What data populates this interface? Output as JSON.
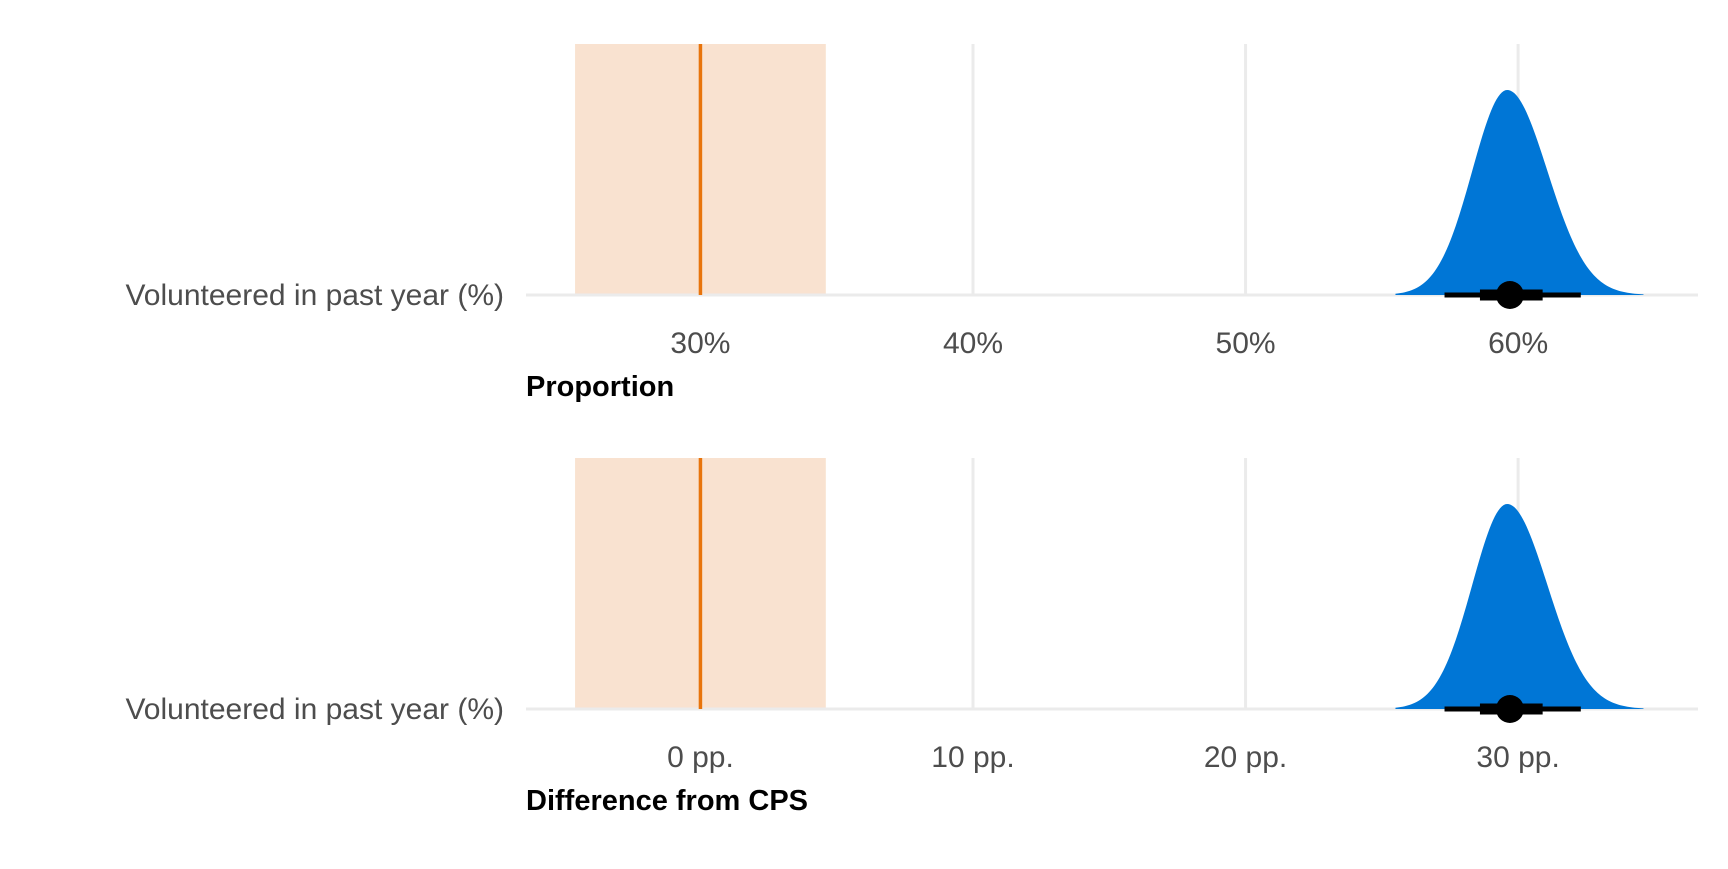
{
  "colors": {
    "density": "#0076D6",
    "reference_line": "#E8740C",
    "reference_band": "#F9E2D0",
    "grid": "#EBEBEB",
    "interval": "#000000"
  },
  "chart_data": [
    {
      "type": "density",
      "category": "Volunteered in past year (%)",
      "xlabel": "Proportion",
      "tick_values": [
        30,
        40,
        50,
        60
      ],
      "tick_labels": [
        "30%",
        "40%",
        "50%",
        "60%"
      ],
      "xlim": [
        23.6,
        66.6
      ],
      "reference": {
        "value": 30.0,
        "band": [
          25.4,
          34.6
        ]
      },
      "point_estimate": 59.7,
      "interval_inner": [
        58.6,
        60.9
      ],
      "interval_outer": [
        57.3,
        62.3
      ],
      "density_range": [
        55.5,
        64.6
      ],
      "density_peak": 59.6,
      "grid": true
    },
    {
      "type": "density",
      "category": "Volunteered in past year (%)",
      "xlabel": "Difference from CPS",
      "tick_values": [
        0,
        10,
        20,
        30
      ],
      "tick_labels": [
        "0 pp.",
        "10 pp.",
        "20 pp.",
        "30 pp."
      ],
      "xlim": [
        -6.4,
        36.6
      ],
      "reference": {
        "value": 0.0,
        "band": [
          -4.6,
          4.6
        ]
      },
      "point_estimate": 29.7,
      "interval_inner": [
        28.6,
        30.9
      ],
      "interval_outer": [
        27.3,
        32.3
      ],
      "density_range": [
        25.5,
        34.6
      ],
      "density_peak": 29.6,
      "grid": true
    }
  ]
}
